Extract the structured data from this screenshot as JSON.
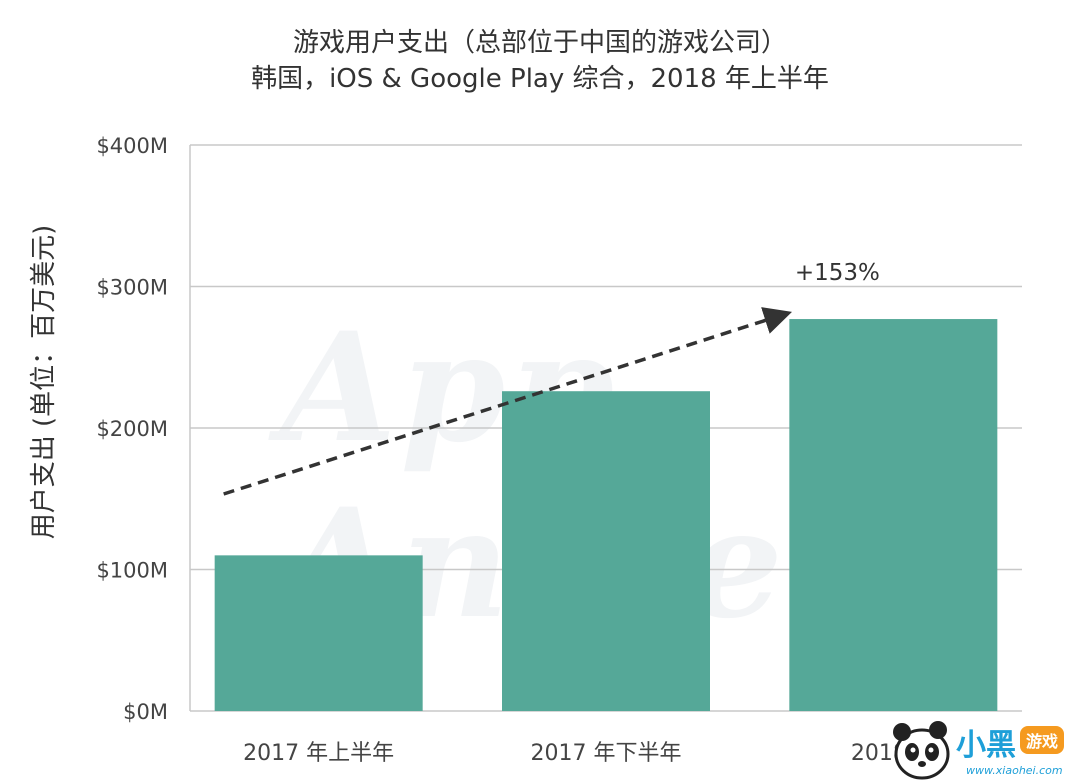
{
  "chart_data": {
    "type": "bar",
    "title": "游戏用户支出（总部位于中国的游戏公司）",
    "subtitle": "韩国，iOS & Google Play 综合，2018 年上半年",
    "ylabel": "用户支出 (单位：百万美元)",
    "xlabel": "",
    "categories": [
      "2017 年上半年",
      "2017 年下半年",
      "2018 年上半年"
    ],
    "category_labels_visible": [
      "2017 年上半年",
      "2017 年下半年",
      "2018 年"
    ],
    "values": [
      110,
      226,
      277
    ],
    "ylim": [
      0,
      400
    ],
    "yticks": [
      0,
      100,
      200,
      300,
      400
    ],
    "ytick_labels": [
      "$0M",
      "$100M",
      "$200M",
      "$300M",
      "$400M"
    ],
    "bar_color": "#55a898",
    "grid": true,
    "annotation": {
      "text": "+153%",
      "from_category": 0,
      "to_category": 2,
      "style": "dashed-arrow",
      "color": "#333333"
    }
  },
  "watermark": {
    "text": "App Annie"
  },
  "logo": {
    "name": "panda-logo",
    "text": "小黑",
    "badge": "游戏",
    "url": "www.xiaohei.com"
  }
}
